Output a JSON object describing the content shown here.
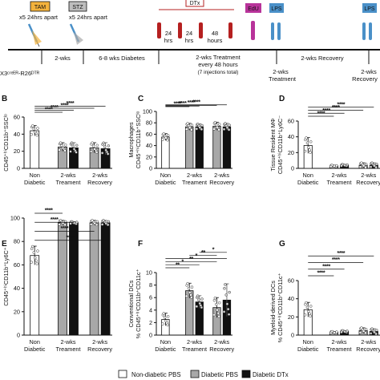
{
  "colors": {
    "non_diabetic_pbs": "#ffffff",
    "diabetic_pbs": "#a8a8a8",
    "diabetic_dtx": "#111111",
    "tam": "#f3b23c",
    "stz": "#bdbdbd",
    "dtx": "#b52020",
    "edu": "#b8339a",
    "lps": "#4a90c8"
  },
  "timeline": {
    "tags": {
      "tam": "TAM",
      "stz": "STZ",
      "dtx": "DTx",
      "edu": "EdU",
      "lps1": "LPS",
      "lps2": "LPS"
    },
    "tam_note": "x5 24hrs apart",
    "stz_note": "x5 24hrs apart",
    "mouse_label": "X3ᶜʳᵉᴱᴿ-R26ᴰᵀᴿ",
    "dtx_gaps": [
      "24",
      "hrs",
      "24",
      "hrs",
      "48",
      "hours"
    ],
    "phases": [
      "2-wks",
      "6-8 wks Diabetes",
      "2-wks Treatment",
      "every 48 hours",
      "(7 injections total)",
      "2-wks Recovery"
    ],
    "endpoints": [
      "2-wks",
      "Treatment",
      "2-wks",
      "Recovery"
    ]
  },
  "x_groups": {
    "first": [
      "Non",
      "Diabetic"
    ],
    "second": [
      "2-wks",
      "Treament"
    ],
    "third": [
      "2-wks",
      "Recovery"
    ]
  },
  "legend": [
    "Non-diabetic PBS",
    "Diabetic PBS",
    "Diabetic DTx"
  ],
  "chart_data": [
    {
      "panel": "B",
      "type": "bar",
      "ylabel": "CD45⁺ʰⁱCD11b⁺SSCˡᵒ",
      "ylim": [
        0,
        60
      ],
      "yticks": [
        0,
        20,
        40,
        60
      ],
      "bars": [
        {
          "group": 0,
          "series": "Non-diabetic PBS",
          "value": 44,
          "err": 6
        },
        {
          "group": 1,
          "series": "Diabetic PBS",
          "value": 25,
          "err": 5
        },
        {
          "group": 1,
          "series": "Diabetic DTx",
          "value": 24,
          "err": 6
        },
        {
          "group": 2,
          "series": "Diabetic PBS",
          "value": 24,
          "err": 6
        },
        {
          "group": 2,
          "series": "Diabetic DTx",
          "value": 23,
          "err": 7
        }
      ],
      "significance": [
        "****",
        "****",
        "****",
        "****"
      ]
    },
    {
      "panel": "C",
      "type": "bar",
      "ylabel": "CD45⁺ʰⁱCD11b⁺SSCˡᵒ",
      "ylabel_top": "Macrophages",
      "ylim": [
        0,
        100
      ],
      "yticks": [
        0,
        20,
        40,
        60,
        80,
        100
      ],
      "bars": [
        {
          "group": 0,
          "series": "Non-diabetic PBS",
          "value": 55,
          "err": 6
        },
        {
          "group": 1,
          "series": "Diabetic PBS",
          "value": 73,
          "err": 6
        },
        {
          "group": 1,
          "series": "Diabetic DTx",
          "value": 73,
          "err": 5
        },
        {
          "group": 2,
          "series": "Diabetic PBS",
          "value": 74,
          "err": 7
        },
        {
          "group": 2,
          "series": "Diabetic DTx",
          "value": 73,
          "err": 6
        }
      ],
      "significance": [
        "****",
        "****",
        "****",
        "****"
      ]
    },
    {
      "panel": "D",
      "type": "bar",
      "ylabel": "CD45⁺ʰⁱCD11b⁺Ly6C⁻",
      "ylabel_top": "Tissue Resident MΦ",
      "ylim": [
        0,
        60
      ],
      "yticks": [
        0,
        20,
        40,
        60
      ],
      "bars": [
        {
          "group": 0,
          "series": "Non-diabetic PBS",
          "value": 29,
          "err": 10
        },
        {
          "group": 1,
          "series": "Diabetic PBS",
          "value": 3,
          "err": 1
        },
        {
          "group": 1,
          "series": "Diabetic DTx",
          "value": 4,
          "err": 1
        },
        {
          "group": 2,
          "series": "Diabetic PBS",
          "value": 4,
          "err": 3
        },
        {
          "group": 2,
          "series": "Diabetic DTx",
          "value": 4,
          "err": 3
        }
      ],
      "significance": [
        "****",
        "****",
        "****",
        "****"
      ]
    },
    {
      "panel": "E",
      "type": "bar",
      "ylabel": "CD45⁺ʰⁱCD11b⁺Ly6C⁺",
      "ylim": [
        0,
        100
      ],
      "yticks": [
        0,
        20,
        40,
        60,
        80,
        100
      ],
      "bars": [
        {
          "group": 0,
          "series": "Non-diabetic PBS",
          "value": 68,
          "err": 8
        },
        {
          "group": 1,
          "series": "Diabetic PBS",
          "value": 96,
          "err": 2
        },
        {
          "group": 1,
          "series": "Diabetic DTx",
          "value": 96,
          "err": 1
        },
        {
          "group": 2,
          "series": "Diabetic PBS",
          "value": 96,
          "err": 2
        },
        {
          "group": 2,
          "series": "Diabetic DTx",
          "value": 96,
          "err": 2
        }
      ],
      "significance": [
        "****",
        "****",
        "****",
        "****"
      ]
    },
    {
      "panel": "F",
      "type": "bar",
      "ylabel": "% CD45⁺ʰⁱCD11b⁺CD11c⁺",
      "ylabel_top": "Conventional DCs",
      "ylim": [
        0,
        10
      ],
      "yticks": [
        0,
        2,
        4,
        6,
        8,
        10
      ],
      "bars": [
        {
          "group": 0,
          "series": "Non-diabetic PBS",
          "value": 2.5,
          "err": 1.0
        },
        {
          "group": 1,
          "series": "Diabetic PBS",
          "value": 7.1,
          "err": 1.2
        },
        {
          "group": 1,
          "series": "Diabetic DTx",
          "value": 5.3,
          "err": 1.0
        },
        {
          "group": 2,
          "series": "Diabetic PBS",
          "value": 4.4,
          "err": 1.6
        },
        {
          "group": 2,
          "series": "Diabetic DTx",
          "value": 5.6,
          "err": 2.6
        }
      ],
      "significance": [
        "**",
        "*",
        "**",
        "*",
        "**",
        "*"
      ]
    },
    {
      "panel": "G",
      "type": "bar",
      "ylabel": "% CD45⁺ʰⁱCD11b⁺CD11c⁺",
      "ylabel_top": "Myeloid-derived DCs",
      "ylim": [
        0,
        60
      ],
      "yticks": [
        0,
        20,
        40,
        60
      ],
      "bars": [
        {
          "group": 0,
          "series": "Non-diabetic PBS",
          "value": 28,
          "err": 8
        },
        {
          "group": 1,
          "series": "Diabetic PBS",
          "value": 3,
          "err": 1
        },
        {
          "group": 1,
          "series": "Diabetic DTx",
          "value": 4,
          "err": 1
        },
        {
          "group": 2,
          "series": "Diabetic PBS",
          "value": 5,
          "err": 3
        },
        {
          "group": 2,
          "series": "Diabetic DTx",
          "value": 4,
          "err": 3
        }
      ],
      "significance": [
        "****",
        "****",
        "****",
        "****"
      ]
    }
  ]
}
